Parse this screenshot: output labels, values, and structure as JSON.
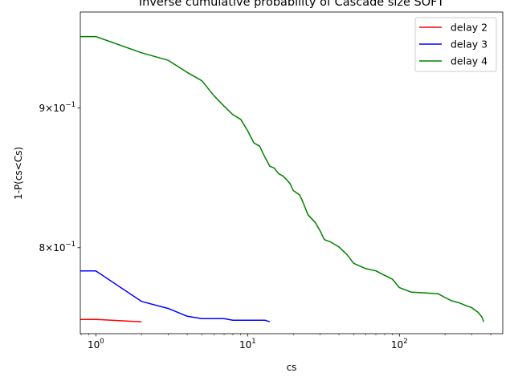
{
  "chart_data": {
    "type": "line",
    "title": "Inverse cumulative probability of Cascade size SOFT",
    "xlabel": "cs",
    "ylabel": "1-P(cs<Cs)",
    "x_scale": "log",
    "y_scale": "log",
    "xlim": [
      0.79,
      480
    ],
    "ylim": [
      0.744,
      0.976
    ],
    "grid": false,
    "legend_position": "top-right",
    "x_ticks": [
      {
        "value": 1,
        "base": "10",
        "exp": "0"
      },
      {
        "value": 10,
        "base": "10",
        "exp": "1"
      },
      {
        "value": 100,
        "base": "10",
        "exp": "2"
      }
    ],
    "y_ticks": [
      {
        "value": 0.8,
        "mant": "8",
        "base": "10",
        "exp": "−1"
      },
      {
        "value": 0.9,
        "mant": "9",
        "base": "10",
        "exp": "−1"
      }
    ],
    "series": [
      {
        "name": "delay 2",
        "color": "#ff0000",
        "x": [
          0.79,
          1,
          2
        ],
        "y": [
          0.753,
          0.753,
          0.7515
        ]
      },
      {
        "name": "delay 3",
        "color": "#0000ff",
        "x": [
          0.79,
          1,
          2,
          3,
          4,
          5,
          7,
          8,
          13,
          14
        ],
        "y": [
          0.7845,
          0.7845,
          0.7645,
          0.76,
          0.755,
          0.7535,
          0.7535,
          0.7525,
          0.7525,
          0.7515
        ]
      },
      {
        "name": "delay 4",
        "color": "#008000",
        "x": [
          0.79,
          1,
          2,
          3,
          4,
          5,
          6,
          7,
          8,
          9,
          10,
          11,
          12,
          13,
          14,
          15,
          16,
          17,
          18,
          19,
          20,
          22,
          23,
          25,
          28,
          30,
          32,
          35,
          40,
          45,
          50,
          60,
          70,
          80,
          90,
          100,
          120,
          150,
          180,
          200,
          220,
          250,
          280,
          300,
          330,
          350,
          360
        ],
        "y": [
          0.956,
          0.956,
          0.943,
          0.937,
          0.9275,
          0.921,
          0.9095,
          0.9015,
          0.895,
          0.8915,
          0.883,
          0.874,
          0.8715,
          0.8635,
          0.857,
          0.8555,
          0.8515,
          0.85,
          0.8475,
          0.8445,
          0.8395,
          0.8365,
          0.832,
          0.8225,
          0.817,
          0.8115,
          0.8055,
          0.804,
          0.8005,
          0.7955,
          0.7895,
          0.786,
          0.7845,
          0.7815,
          0.779,
          0.7735,
          0.7705,
          0.77,
          0.7695,
          0.767,
          0.765,
          0.7635,
          0.7615,
          0.7605,
          0.7575,
          0.7545,
          0.7515
        ]
      }
    ]
  }
}
